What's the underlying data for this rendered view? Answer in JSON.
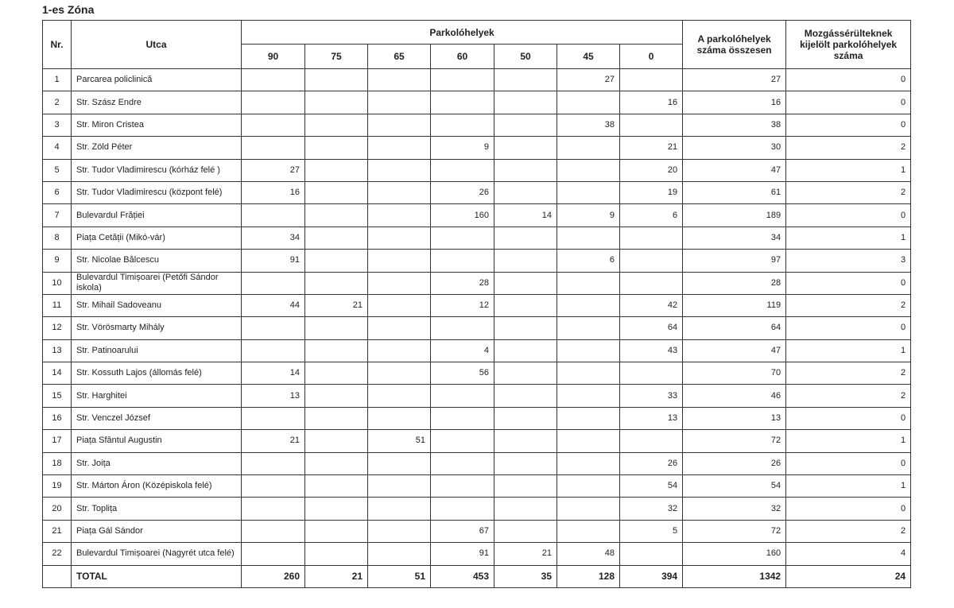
{
  "title": "1-es Zóna",
  "headers": {
    "nr": "Nr.",
    "street": "Utca",
    "spots": "Parkolóhelyek",
    "angles": [
      "90",
      "75",
      "65",
      "60",
      "50",
      "45",
      "0"
    ],
    "total": "A parkolóhelyek száma összesen",
    "disabled": "Mozgássérülteknek kijelölt parkolóhelyek száma"
  },
  "rows": [
    [
      "1",
      "Parcarea policlinică",
      "",
      "",
      "",
      "",
      "",
      "27",
      "",
      "27",
      "0"
    ],
    [
      "2",
      "Str. Szász Endre",
      "",
      "",
      "",
      "",
      "",
      "",
      "16",
      "16",
      "0"
    ],
    [
      "3",
      "Str. Miron Cristea",
      "",
      "",
      "",
      "",
      "",
      "38",
      "",
      "38",
      "0"
    ],
    [
      "4",
      "Str. Zöld Péter",
      "",
      "",
      "",
      "9",
      "",
      "",
      "21",
      "30",
      "2"
    ],
    [
      "5",
      "Str. Tudor Vladimirescu (kórház felé )",
      "27",
      "",
      "",
      "",
      "",
      "",
      "20",
      "47",
      "1"
    ],
    [
      "6",
      "Str. Tudor Vladimirescu (központ felé)",
      "16",
      "",
      "",
      "26",
      "",
      "",
      "19",
      "61",
      "2"
    ],
    [
      "7",
      "Bulevardul Frăției",
      "",
      "",
      "",
      "160",
      "14",
      "9",
      "6",
      "189",
      "0"
    ],
    [
      "8",
      "Piața Cetății (Mikó-vár)",
      "34",
      "",
      "",
      "",
      "",
      "",
      "",
      "34",
      "1"
    ],
    [
      "9",
      "Str. Nicolae Bălcescu",
      "91",
      "",
      "",
      "",
      "",
      "6",
      "",
      "97",
      "3"
    ],
    [
      "10",
      "Bulevardul Timișoarei (Petőfi Sándor iskola)",
      "",
      "",
      "",
      "28",
      "",
      "",
      "",
      "28",
      "0"
    ],
    [
      "11",
      "Str. Mihail Sadoveanu",
      "44",
      "21",
      "",
      "12",
      "",
      "",
      "42",
      "119",
      "2"
    ],
    [
      "12",
      "Str. Vörösmarty Mihály",
      "",
      "",
      "",
      "",
      "",
      "",
      "64",
      "64",
      "0"
    ],
    [
      "13",
      "Str. Patinoarului",
      "",
      "",
      "",
      "4",
      "",
      "",
      "43",
      "47",
      "1"
    ],
    [
      "14",
      "Str. Kossuth Lajos (állomás felé)",
      "14",
      "",
      "",
      "56",
      "",
      "",
      "",
      "70",
      "2"
    ],
    [
      "15",
      "Str. Harghitei",
      "13",
      "",
      "",
      "",
      "",
      "",
      "33",
      "46",
      "2"
    ],
    [
      "16",
      "Str. Venczel József",
      "",
      "",
      "",
      "",
      "",
      "",
      "13",
      "13",
      "0"
    ],
    [
      "17",
      "Piața Sfântul Augustin",
      "21",
      "",
      "51",
      "",
      "",
      "",
      "",
      "72",
      "1"
    ],
    [
      "18",
      "Str. Joița",
      "",
      "",
      "",
      "",
      "",
      "",
      "26",
      "26",
      "0"
    ],
    [
      "19",
      "Str. Márton Áron (Középiskola felé)",
      "",
      "",
      "",
      "",
      "",
      "",
      "54",
      "54",
      "1"
    ],
    [
      "20",
      "Str. Toplița",
      "",
      "",
      "",
      "",
      "",
      "",
      "32",
      "32",
      "0"
    ],
    [
      "21",
      "Piața Gál Sándor",
      "",
      "",
      "",
      "67",
      "",
      "",
      "5",
      "72",
      "2"
    ],
    [
      "22",
      "Bulevardul Timișoarei (Nagyrét utca felé)",
      "",
      "",
      "",
      "91",
      "21",
      "48",
      "",
      "160",
      "4"
    ]
  ],
  "total": [
    "",
    "TOTAL",
    "260",
    "21",
    "51",
    "453",
    "35",
    "128",
    "394",
    "1342",
    "24"
  ]
}
